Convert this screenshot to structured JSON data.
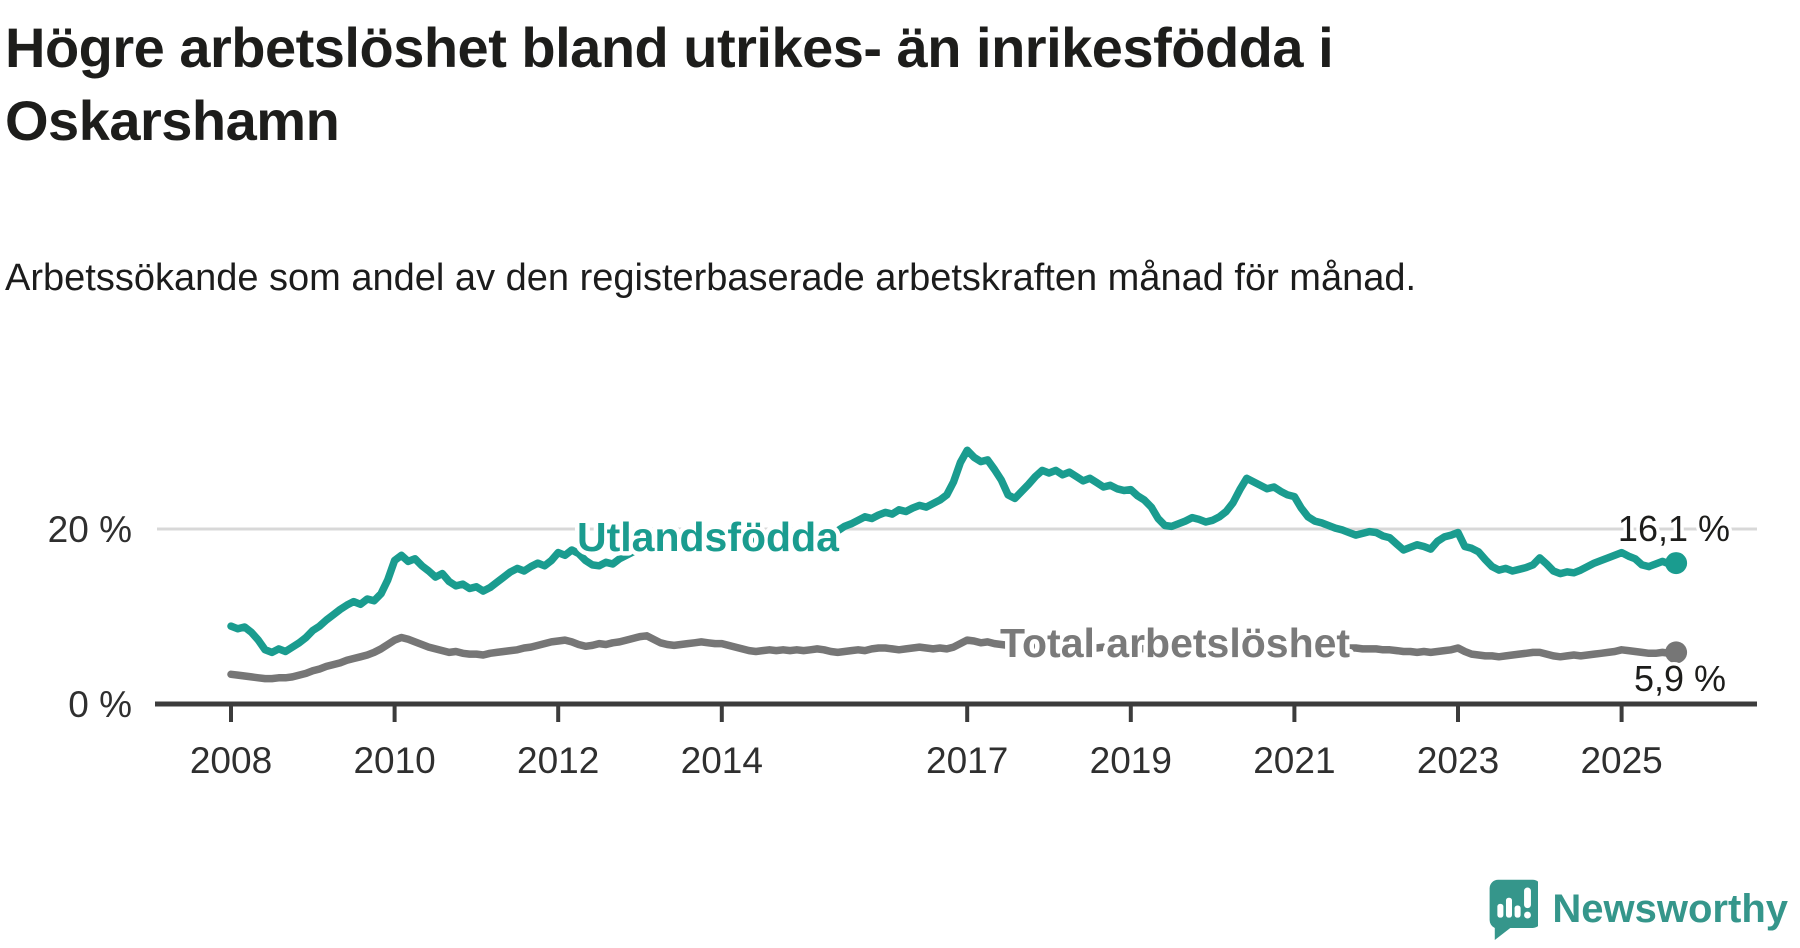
{
  "header": {
    "title": "Högre arbetslöshet bland utrikes- än inrikesfödda i Oskarshamn",
    "subtitle": "Arbetssökande som andel av den registerbaserade arbetskraften månad för månad."
  },
  "footer": {
    "brand": "Newsworthy"
  },
  "colors": {
    "accent_teal": "#1a9c8f",
    "line_gray": "#767676",
    "gridline": "#d8d8d8",
    "axis": "#3c3c3c",
    "text_dark": "#1d1d1b",
    "logo_teal": "#35968b"
  },
  "chart_data": {
    "type": "line",
    "title": "Högre arbetslöshet bland utrikes- än inrikesfödda i Oskarshamn",
    "subtitle": "Arbetssökande som andel av den registerbaserade arbetskraften månad för månad.",
    "unit": "%",
    "x_start": "2008-01",
    "x_end": "2025-09",
    "x_resolution": "monthly",
    "grid": "horizontal-20-only",
    "legend_position": "inline-on-lines",
    "ylim": [
      0,
      31
    ],
    "y_axis": {
      "ticks": [
        {
          "value": 0,
          "label": "0 %"
        },
        {
          "value": 20,
          "label": "20 %"
        }
      ]
    },
    "x_ticks": [
      {
        "year": 2008,
        "label": "2008"
      },
      {
        "year": 2010,
        "label": "2010"
      },
      {
        "year": 2012,
        "label": "2012"
      },
      {
        "year": 2014,
        "label": "2014"
      },
      {
        "year": 2017,
        "label": "2017"
      },
      {
        "year": 2019,
        "label": "2019"
      },
      {
        "year": 2021,
        "label": "2021"
      },
      {
        "year": 2023,
        "label": "2023"
      },
      {
        "year": 2025,
        "label": "2025"
      }
    ],
    "series": [
      {
        "name": "Total arbetslöshet",
        "color": "#767676",
        "end_value": 5.9,
        "end_label": "5,9 %",
        "values": [
          3.4,
          3.3,
          3.2,
          3.1,
          3.0,
          2.9,
          2.9,
          3.0,
          3.0,
          3.1,
          3.3,
          3.5,
          3.8,
          4.0,
          4.3,
          4.5,
          4.7,
          5.0,
          5.2,
          5.4,
          5.6,
          5.9,
          6.3,
          6.8,
          7.3,
          7.6,
          7.4,
          7.1,
          6.8,
          6.5,
          6.3,
          6.1,
          5.9,
          6.0,
          5.8,
          5.7,
          5.7,
          5.6,
          5.8,
          5.9,
          6.0,
          6.1,
          6.2,
          6.4,
          6.5,
          6.7,
          6.9,
          7.1,
          7.2,
          7.3,
          7.1,
          6.8,
          6.6,
          6.7,
          6.9,
          6.8,
          7.0,
          7.1,
          7.3,
          7.5,
          7.7,
          7.8,
          7.4,
          7.0,
          6.8,
          6.7,
          6.8,
          6.9,
          7.0,
          7.1,
          7.0,
          6.9,
          6.9,
          6.7,
          6.5,
          6.3,
          6.1,
          6.0,
          6.1,
          6.2,
          6.1,
          6.2,
          6.1,
          6.2,
          6.1,
          6.2,
          6.3,
          6.2,
          6.0,
          5.9,
          6.0,
          6.1,
          6.2,
          6.1,
          6.3,
          6.4,
          6.4,
          6.3,
          6.2,
          6.3,
          6.4,
          6.5,
          6.4,
          6.3,
          6.4,
          6.3,
          6.5,
          6.9,
          7.3,
          7.2,
          7.0,
          7.1,
          6.9,
          6.8,
          6.7,
          6.8,
          6.7,
          6.6,
          6.7,
          6.8,
          6.9,
          6.8,
          6.7,
          6.6,
          6.5,
          6.4,
          6.5,
          6.4,
          6.5,
          6.6,
          6.5,
          6.6,
          6.5,
          6.4,
          6.3,
          6.2,
          6.2,
          6.3,
          6.2,
          6.3,
          6.4,
          6.4,
          6.5,
          6.5,
          6.6,
          6.8,
          7.0,
          7.3,
          7.5,
          7.6,
          7.5,
          7.4,
          7.4,
          7.3,
          7.2,
          7.2,
          7.2,
          7.1,
          7.0,
          6.9,
          6.8,
          6.7,
          6.6,
          6.5,
          6.4,
          6.4,
          6.3,
          6.3,
          6.3,
          6.2,
          6.2,
          6.1,
          6.0,
          6.0,
          5.9,
          6.0,
          5.9,
          6.0,
          6.1,
          6.2,
          6.4,
          6.0,
          5.7,
          5.6,
          5.5,
          5.5,
          5.4,
          5.5,
          5.6,
          5.7,
          5.8,
          5.9,
          5.9,
          5.7,
          5.5,
          5.4,
          5.5,
          5.6,
          5.5,
          5.6,
          5.7,
          5.8,
          5.9,
          6.0,
          6.2,
          6.1,
          6.0,
          5.9,
          5.8,
          5.8,
          5.9,
          5.8,
          5.9
        ]
      },
      {
        "name": "Utlandsfödda",
        "color": "#1a9c8f",
        "end_value": 16.1,
        "end_label": "16,1 %",
        "values": [
          8.9,
          8.6,
          8.8,
          8.2,
          7.3,
          6.2,
          5.9,
          6.3,
          6.0,
          6.5,
          7.0,
          7.6,
          8.4,
          8.9,
          9.6,
          10.2,
          10.8,
          11.3,
          11.7,
          11.4,
          12.0,
          11.8,
          12.6,
          14.2,
          16.4,
          17.0,
          16.3,
          16.6,
          15.8,
          15.2,
          14.5,
          14.9,
          14.0,
          13.5,
          13.7,
          13.2,
          13.4,
          12.9,
          13.3,
          13.9,
          14.5,
          15.1,
          15.5,
          15.2,
          15.7,
          16.1,
          15.8,
          16.4,
          17.3,
          17.0,
          17.6,
          17.2,
          16.4,
          15.9,
          15.8,
          16.2,
          16.0,
          16.6,
          17.0,
          17.4,
          17.8,
          18.1,
          17.7,
          18.0,
          18.3,
          18.0,
          18.4,
          18.1,
          17.9,
          18.2,
          18.5,
          18.3,
          18.6,
          18.4,
          18.8,
          18.5,
          18.9,
          18.7,
          19.1,
          18.8,
          19.0,
          19.3,
          19.1,
          19.4,
          19.2,
          19.5,
          19.3,
          19.6,
          19.4,
          19.8,
          20.3,
          20.6,
          21.0,
          21.4,
          21.2,
          21.6,
          21.9,
          21.7,
          22.2,
          22.0,
          22.4,
          22.7,
          22.5,
          22.9,
          23.3,
          23.9,
          25.4,
          27.6,
          29.0,
          28.2,
          27.7,
          27.9,
          26.8,
          25.6,
          23.9,
          23.5,
          24.3,
          25.1,
          26.0,
          26.7,
          26.4,
          26.7,
          26.2,
          26.5,
          26.0,
          25.5,
          25.8,
          25.3,
          24.8,
          25.0,
          24.6,
          24.4,
          24.5,
          23.8,
          23.3,
          22.5,
          21.2,
          20.4,
          20.3,
          20.6,
          20.9,
          21.3,
          21.1,
          20.8,
          21.0,
          21.4,
          22.0,
          23.0,
          24.5,
          25.8,
          25.4,
          25.0,
          24.6,
          24.8,
          24.3,
          23.9,
          23.7,
          22.4,
          21.4,
          20.9,
          20.7,
          20.4,
          20.1,
          19.9,
          19.6,
          19.3,
          19.5,
          19.7,
          19.6,
          19.2,
          19.0,
          18.3,
          17.6,
          17.9,
          18.2,
          18.0,
          17.7,
          18.6,
          19.1,
          19.3,
          19.6,
          18.0,
          17.8,
          17.4,
          16.5,
          15.7,
          15.3,
          15.5,
          15.2,
          15.4,
          15.6,
          15.9,
          16.7,
          16.0,
          15.2,
          14.9,
          15.1,
          15.0,
          15.3,
          15.7,
          16.1,
          16.4,
          16.7,
          17.0,
          17.3,
          16.9,
          16.6,
          15.9,
          15.7,
          16.0,
          16.3,
          16.0,
          16.1
        ]
      }
    ]
  }
}
